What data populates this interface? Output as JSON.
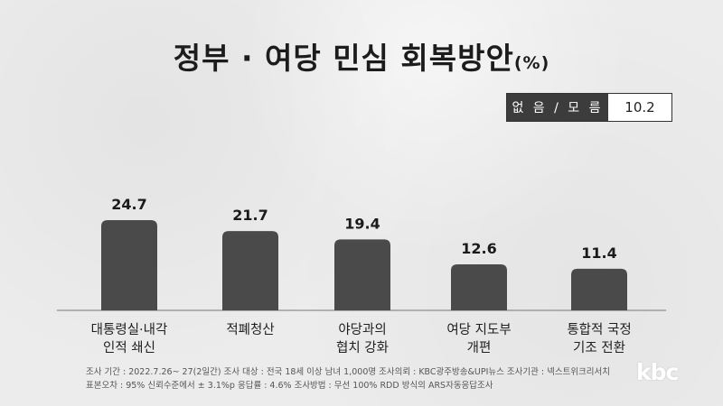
{
  "title": "정부 · 여당 민심 회복방안",
  "title_unit": "(%)",
  "dont_know": {
    "label": "없 음 / 모 름",
    "value": "10.2"
  },
  "chart_data": {
    "type": "bar",
    "categories": [
      [
        "대통령실·내각",
        "인적 쇄신"
      ],
      [
        "적폐청산"
      ],
      [
        "야당과의",
        "협치 강화"
      ],
      [
        "여당 지도부",
        "개편"
      ],
      [
        "통합적 국정",
        "기조 전환"
      ]
    ],
    "values": [
      24.7,
      21.7,
      19.4,
      12.6,
      11.4
    ],
    "value_labels": [
      "24.7",
      "21.7",
      "19.4",
      "12.6",
      "11.4"
    ],
    "bar_color": "#4a4a4a",
    "ylim": [
      0,
      30
    ]
  },
  "footer": {
    "line1": "조사 기간 : 2022.7.26~ 27(2일간)   조사 대상 : 전국 18세 이상 남녀 1,000명 조사의뢰 : KBC광주방송&UPI뉴스   조사기관 : 넥스트위크리서치",
    "line2": "표본오차 : 95% 신뢰수준에서 ± 3.1%p   응답률 : 4.6%   조사방법 : 무선 100% RDD 방식의 ARS자동응답조사"
  },
  "logo": "kbc"
}
